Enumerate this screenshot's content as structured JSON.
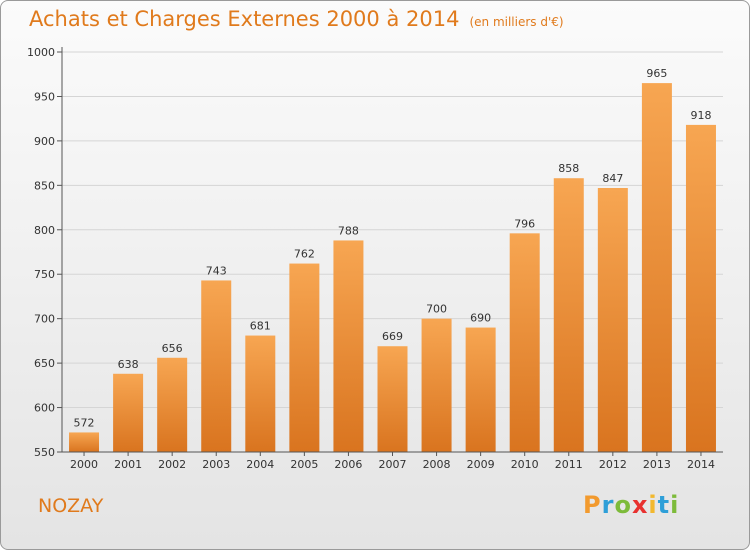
{
  "title": "Achats et Charges Externes 2000 à 2014",
  "subtitle": "(en milliers d'€)",
  "place_label": "NOZAY",
  "logo": {
    "text": "Proxiti",
    "letters": [
      "P",
      "r",
      "o",
      "x",
      "i",
      "t",
      "i"
    ],
    "letter_colors": [
      "#f29a2e",
      "#2e9fd8",
      "#7dbb3a",
      "#e8312f",
      "#f2b82e",
      "#2e9fd8",
      "#7dbb3a"
    ]
  },
  "colors": {
    "accent": "#e07a1c",
    "bar_top": "#f7a652",
    "bar_bottom": "#d9741f",
    "grid": "#d5d5d5",
    "axis": "#555555"
  },
  "chart_data": {
    "type": "bar",
    "title": "Achats et Charges Externes 2000 à 2014",
    "subtitle": "(en milliers d'€)",
    "xlabel": "",
    "ylabel": "",
    "categories": [
      "2000",
      "2001",
      "2002",
      "2003",
      "2004",
      "2005",
      "2006",
      "2007",
      "2008",
      "2009",
      "2010",
      "2011",
      "2012",
      "2013",
      "2014"
    ],
    "values": [
      572,
      638,
      656,
      743,
      681,
      762,
      788,
      669,
      700,
      690,
      796,
      858,
      847,
      965,
      918
    ],
    "ylim": [
      550,
      1000
    ],
    "yticks": [
      550,
      600,
      650,
      700,
      750,
      800,
      850,
      900,
      950,
      1000
    ],
    "grid": true,
    "legend": "none"
  }
}
